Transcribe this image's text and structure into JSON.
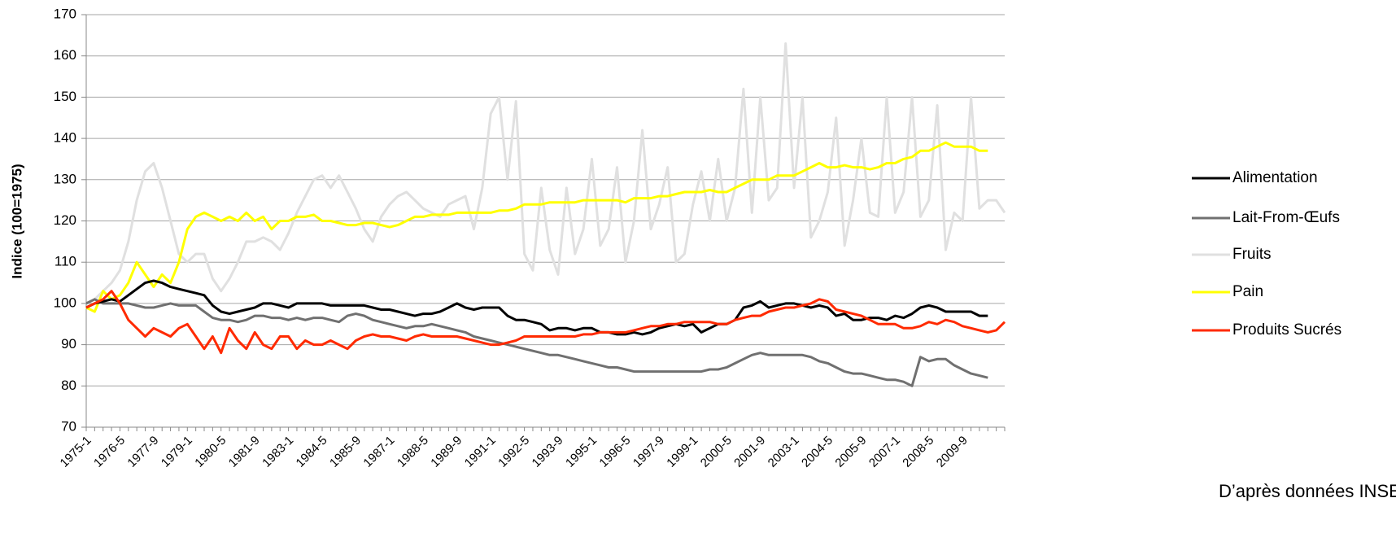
{
  "chart_data": {
    "type": "line",
    "y_label": "Indice (100=1975)",
    "source": "D’après données INSEE",
    "categories": [
      "1975-1",
      null,
      null,
      null,
      "1976-5",
      null,
      null,
      null,
      "1977-9",
      null,
      null,
      null,
      "1979-1",
      null,
      null,
      null,
      "1980-5",
      null,
      null,
      null,
      "1981-9",
      null,
      null,
      null,
      "1983-1",
      null,
      null,
      null,
      "1984-5",
      null,
      null,
      null,
      "1985-9",
      null,
      null,
      null,
      "1987-1",
      null,
      null,
      null,
      "1988-5",
      null,
      null,
      null,
      "1989-9",
      null,
      null,
      null,
      "1991-1",
      null,
      null,
      null,
      "1992-5",
      null,
      null,
      null,
      "1993-9",
      null,
      null,
      null,
      "1995-1",
      null,
      null,
      null,
      "1996-5",
      null,
      null,
      null,
      "1997-9",
      null,
      null,
      null,
      "1999-1",
      null,
      null,
      null,
      "2000-5",
      null,
      null,
      null,
      "2001-9",
      null,
      null,
      null,
      "2003-1",
      null,
      null,
      null,
      "2004-5",
      null,
      null,
      null,
      "2005-9",
      null,
      null,
      null,
      "2007-1",
      null,
      null,
      null,
      "2008-5",
      null,
      null,
      null,
      "2009-9",
      null,
      null,
      null,
      null,
      null
    ],
    "ylim": [
      70,
      170
    ],
    "yticks": [
      70,
      80,
      90,
      100,
      110,
      120,
      130,
      140,
      150,
      160,
      170
    ],
    "grid": true,
    "legend": "right",
    "series": [
      {
        "name": "Fruits",
        "color": "#e0e0e0",
        "values": [
          100,
          101,
          103,
          105,
          108,
          115,
          125,
          132,
          134,
          128,
          120,
          112,
          110,
          112,
          112,
          106,
          103,
          106,
          110,
          115,
          115,
          116,
          115,
          113,
          117,
          122,
          126,
          130,
          131,
          128,
          131,
          127,
          123,
          118,
          115,
          121,
          124,
          126,
          127,
          125,
          123,
          122,
          121,
          124,
          125,
          126,
          118,
          128,
          146,
          150,
          130,
          149,
          112,
          108,
          128,
          113,
          107,
          128,
          112,
          118,
          135,
          114,
          118,
          133,
          110,
          120,
          142,
          118,
          124,
          133,
          110,
          112,
          124,
          132,
          120,
          135,
          120,
          128,
          152,
          122,
          150,
          125,
          128,
          163,
          128,
          150,
          116,
          120,
          127,
          145,
          114,
          125,
          140,
          122,
          121,
          150,
          122,
          127,
          150,
          121,
          125,
          148,
          113,
          122,
          120,
          150,
          123,
          125,
          125,
          122
        ]
      },
      {
        "name": "Pain",
        "color": "#ffff00",
        "values": [
          99,
          98,
          103,
          101,
          102,
          105,
          110,
          107,
          104,
          107,
          105,
          110,
          118,
          121,
          122,
          121,
          120,
          121,
          120,
          122,
          120,
          121,
          118,
          120,
          120,
          121,
          121,
          121.5,
          120,
          120,
          119.5,
          119,
          119,
          119.5,
          119.5,
          119,
          118.5,
          119,
          120,
          121,
          121,
          121.5,
          121.5,
          121.5,
          122,
          122,
          122,
          122,
          122,
          122.5,
          122.5,
          123,
          124,
          124,
          124,
          124.5,
          124.5,
          124.5,
          124.5,
          125,
          125,
          125,
          125,
          125,
          124.5,
          125.5,
          125.5,
          125.5,
          126,
          126,
          126.5,
          127,
          127,
          127,
          127.5,
          127,
          127,
          128,
          129,
          130,
          130,
          130,
          131,
          131,
          131,
          132,
          133,
          134,
          133,
          133,
          133.5,
          133,
          133,
          132.5,
          133,
          134,
          134,
          135,
          135.5,
          137,
          137,
          138,
          139,
          138,
          138,
          138,
          137,
          137,
          null,
          null
        ]
      },
      {
        "name": "Lait-From-Œufs",
        "color": "#707070",
        "values": [
          100,
          101,
          100,
          100,
          100,
          100,
          99.5,
          99,
          99,
          99.5,
          100,
          99.5,
          99.5,
          99.5,
          98,
          96.5,
          96,
          96,
          95.5,
          96,
          97,
          97,
          96.5,
          96.5,
          96,
          96.5,
          96,
          96.5,
          96.5,
          96,
          95.5,
          97,
          97.5,
          97,
          96,
          95.5,
          95,
          94.5,
          94,
          94.5,
          94.5,
          95,
          94.5,
          94,
          93.5,
          93,
          92,
          91.5,
          91,
          90.5,
          90,
          89.5,
          89,
          88.5,
          88,
          87.5,
          87.5,
          87,
          86.5,
          86,
          85.5,
          85,
          84.5,
          84.5,
          84,
          83.5,
          83.5,
          83.5,
          83.5,
          83.5,
          83.5,
          83.5,
          83.5,
          83.5,
          84,
          84,
          84.5,
          85.5,
          86.5,
          87.5,
          88,
          87.5,
          87.5,
          87.5,
          87.5,
          87.5,
          87,
          86,
          85.5,
          84.5,
          83.5,
          83,
          83,
          82.5,
          82,
          81.5,
          81.5,
          81,
          80,
          87,
          86,
          86.5,
          86.5,
          85,
          84,
          83,
          82.5,
          82,
          null,
          null
        ]
      },
      {
        "name": "Alimentation",
        "color": "#000000",
        "values": [
          99,
          100,
          100.5,
          101,
          100.5,
          102,
          103.5,
          105,
          105.5,
          105,
          104,
          103.5,
          103,
          102.5,
          102,
          99.5,
          98,
          97.5,
          98,
          98.5,
          99,
          100,
          100,
          99.5,
          99,
          100,
          100,
          100,
          100,
          99.5,
          99.5,
          99.5,
          99.5,
          99.5,
          99,
          98.5,
          98.5,
          98,
          97.5,
          97,
          97.5,
          97.5,
          98,
          99,
          100,
          99,
          98.5,
          99,
          99,
          99,
          97,
          96,
          96,
          95.5,
          95,
          93.5,
          94,
          94,
          93.5,
          94,
          94,
          93,
          93,
          92.5,
          92.5,
          93,
          92.5,
          93,
          94,
          94.5,
          95,
          94.5,
          95,
          93,
          94,
          95,
          95,
          96,
          99,
          99.5,
          100.5,
          99,
          99.5,
          100,
          100,
          99.5,
          99,
          99.5,
          99,
          97,
          97.5,
          96,
          96,
          96.5,
          96.5,
          96,
          97,
          96.5,
          97.5,
          99,
          99.5,
          99,
          98,
          98,
          98,
          98,
          97,
          97,
          null,
          null
        ]
      },
      {
        "name": "Produits Sucrés",
        "color": "#ff2a00",
        "values": [
          99,
          100,
          101,
          103,
          100,
          96,
          94,
          92,
          94,
          93,
          92,
          94,
          95,
          92,
          89,
          92,
          88,
          94,
          91,
          89,
          93,
          90,
          89,
          92,
          92,
          89,
          91,
          90,
          90,
          91,
          90,
          89,
          91,
          92,
          92.5,
          92,
          92,
          91.5,
          91,
          92,
          92.5,
          92,
          92,
          92,
          92,
          91.5,
          91,
          90.5,
          90,
          90,
          90.5,
          91,
          92,
          92,
          92,
          92,
          92,
          92,
          92,
          92.5,
          92.5,
          93,
          93,
          93,
          93,
          93.5,
          94,
          94.5,
          94.5,
          95,
          95,
          95.5,
          95.5,
          95.5,
          95.5,
          95,
          95,
          96,
          96.5,
          97,
          97,
          98,
          98.5,
          99,
          99,
          99.5,
          100,
          101,
          100.5,
          98.5,
          98,
          97.5,
          97,
          96,
          95,
          95,
          95,
          94,
          94,
          94.5,
          95.5,
          95,
          96,
          95.5,
          94.5,
          94,
          93.5,
          93,
          93.5,
          95.5
        ]
      }
    ]
  }
}
